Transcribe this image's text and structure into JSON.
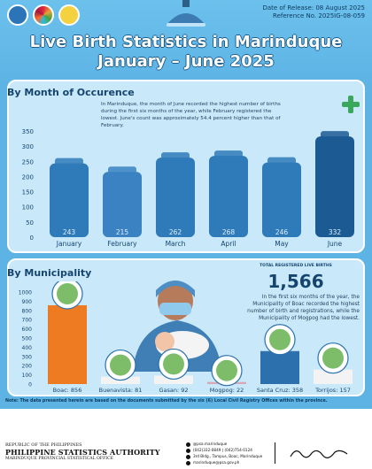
{
  "header": {
    "release_date": "Date of Release: 08 August 2025",
    "reference_no": "Reference No. 2025IG-08-059",
    "title_line1": "Live Birth Statistics in Marinduque",
    "title_line2": "January – June 2025"
  },
  "colors": {
    "background": "#5db4e4",
    "panel": "#c9e8f9",
    "bar": "#2f7ab8",
    "bar_low": "#3a82c2",
    "bar_high": "#1c5a94",
    "boac_bar": "#ee7a22",
    "mogpog_bar": "#d8a8b4",
    "plus": "#3aa85a"
  },
  "month_section": {
    "heading": "By Month of Occurence",
    "description": "In Marinduque, the month of June recorded the highest number of births during the first six months of the year, while February registered the lowest. June's count was approximately 54.4 percent higher than that of February."
  },
  "municipality_section": {
    "heading": "By Municipality",
    "total_label": "TOTAL REGISTERED LIVE BIRTHS",
    "total_value": "1,566",
    "description": "In the first six months of the year, the Municipality of Boac recorded the highest number of birth and registrations, while the Municipality of Mogpog had the lowest."
  },
  "chart_data": [
    {
      "type": "bar",
      "categories": [
        "January",
        "February",
        "March",
        "April",
        "May",
        "June"
      ],
      "values": [
        243,
        215,
        262,
        268,
        246,
        332
      ],
      "ylim": [
        0,
        350
      ],
      "yticks": [
        0,
        50,
        100,
        150,
        200,
        250,
        300,
        350
      ],
      "grid": false,
      "data_labels": [
        "243",
        "215",
        "262",
        "268",
        "246",
        "332"
      ]
    },
    {
      "type": "bar",
      "categories": [
        "Boac",
        "Buenavista",
        "Gasan",
        "Mogpog",
        "Santa Cruz",
        "Torrijos"
      ],
      "values": [
        856,
        81,
        92,
        22,
        358,
        157
      ],
      "ylim": [
        0,
        1000
      ],
      "yticks": [
        0,
        100,
        200,
        300,
        400,
        500,
        600,
        700,
        800,
        900,
        1000
      ],
      "grid": false,
      "category_labels": [
        "Boac: 856",
        "Buenavista: 81",
        "Gasan: 92",
        "Mogpog: 22",
        "Santa Cruz: 358",
        "Torrijos: 157"
      ]
    }
  ],
  "note": "Note: The data presented herein are based on the documents submitted by the six (6) Local Civil Registry Offices within the province.",
  "footer": {
    "republic": "REPUBLIC OF THE PHILIPPINES",
    "agency": "PHILIPPINE STATISTICS AUTHORITY",
    "office": "MARINDUQUE PROVINCIAL STATISTICAL OFFICE",
    "contacts": [
      "@psa.marinduque",
      "(042)332-0849 | (042)754-0124",
      "3rd Bldg., Tampus, Boac, Marinduque",
      "marinduque@psa.gov.ph"
    ],
    "signature": "Semenidi Gjie"
  }
}
